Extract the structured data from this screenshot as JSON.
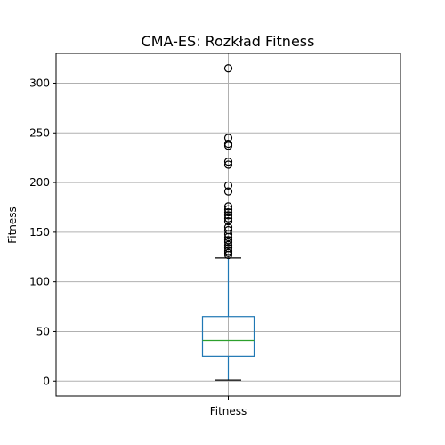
{
  "chart_data": {
    "type": "box",
    "title": "CMA-ES: Rozkład Fitness",
    "ylabel": "Fitness",
    "xlabel": "",
    "ylim": [
      -15,
      330
    ],
    "yticks": [
      0,
      50,
      100,
      150,
      200,
      250,
      300
    ],
    "grid": true,
    "categories": [
      "Fitness"
    ],
    "box": {
      "whisker_low": 1,
      "q1": 25,
      "median": 41,
      "q3": 65,
      "whisker_high": 124
    },
    "outliers": [
      315,
      245,
      239,
      237,
      221,
      218,
      197,
      191,
      176,
      173,
      170,
      167,
      164,
      161,
      155,
      152,
      148,
      145,
      142,
      140,
      137,
      134,
      131,
      129,
      127
    ],
    "colors": {
      "box": "#1f77b4",
      "median": "#2ca02c",
      "grid": "#b0b0b0",
      "outlier": "#000000"
    }
  }
}
